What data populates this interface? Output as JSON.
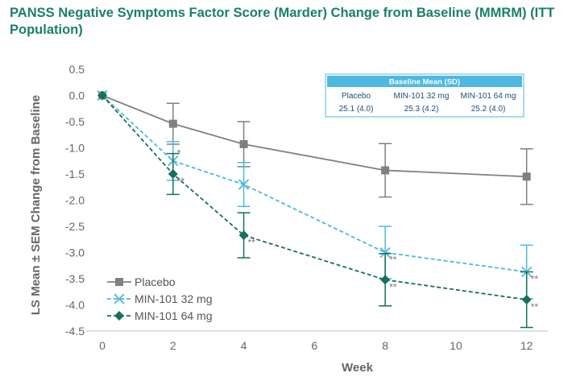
{
  "chart_data": {
    "type": "line",
    "title": "PANSS Negative Symptoms Factor Score (Marder) Change from Baseline (MMRM) (ITT Population)",
    "xlabel": "Week",
    "ylabel": "LS Mean ± SEM Change from Baseline",
    "x_ticks": [
      0,
      2,
      4,
      6,
      8,
      10,
      12
    ],
    "y_ticks": [
      0.5,
      0.0,
      -0.5,
      -1.0,
      -1.5,
      -2.0,
      -2.5,
      -3.0,
      -3.5,
      -4.0,
      -4.5
    ],
    "xlim": [
      0,
      12.6
    ],
    "ylim": [
      -4.5,
      0.5
    ],
    "grid": false,
    "legend_position": "bottom-left",
    "series": [
      {
        "name": "Placebo",
        "color": "#808080",
        "marker": "square",
        "line_style": "solid",
        "x": [
          0,
          2,
          4,
          8,
          12
        ],
        "y": [
          0.0,
          -0.54,
          -0.93,
          -1.43,
          -1.55
        ],
        "sem": [
          0,
          0.39,
          0.43,
          0.51,
          0.53
        ],
        "significance": [
          "",
          "",
          "",
          "",
          ""
        ]
      },
      {
        "name": "MIN-101 32 mg",
        "color": "#4db8e0",
        "marker": "x",
        "line_style": "dashed",
        "x": [
          0,
          2,
          4,
          8,
          12
        ],
        "y": [
          0.0,
          -1.25,
          -1.7,
          -3.0,
          -3.37
        ],
        "sem": [
          0,
          0.37,
          0.42,
          0.5,
          0.51
        ],
        "significance": [
          "",
          "*",
          "",
          "**",
          "**"
        ]
      },
      {
        "name": "MIN-101 64 mg",
        "color": "#15705f",
        "marker": "diamond",
        "line_style": "dashed",
        "x": [
          0,
          2,
          4,
          8,
          12
        ],
        "y": [
          0.0,
          -1.5,
          -2.67,
          -3.52,
          -3.9
        ],
        "sem": [
          0,
          0.39,
          0.43,
          0.5,
          0.53
        ],
        "significance": [
          "",
          "**",
          "**",
          "**",
          "**"
        ]
      }
    ],
    "baseline_table": {
      "header": "Baseline Mean (SD)",
      "columns": [
        "Placebo",
        "MIN-101 32 mg",
        "MIN-101 64 mg"
      ],
      "values": [
        "25.1 (4.0)",
        "25.3 (4.2)",
        "25.2 (4.0)"
      ],
      "header_color": "#4db8e0",
      "text_color": "#1f4e79"
    }
  }
}
